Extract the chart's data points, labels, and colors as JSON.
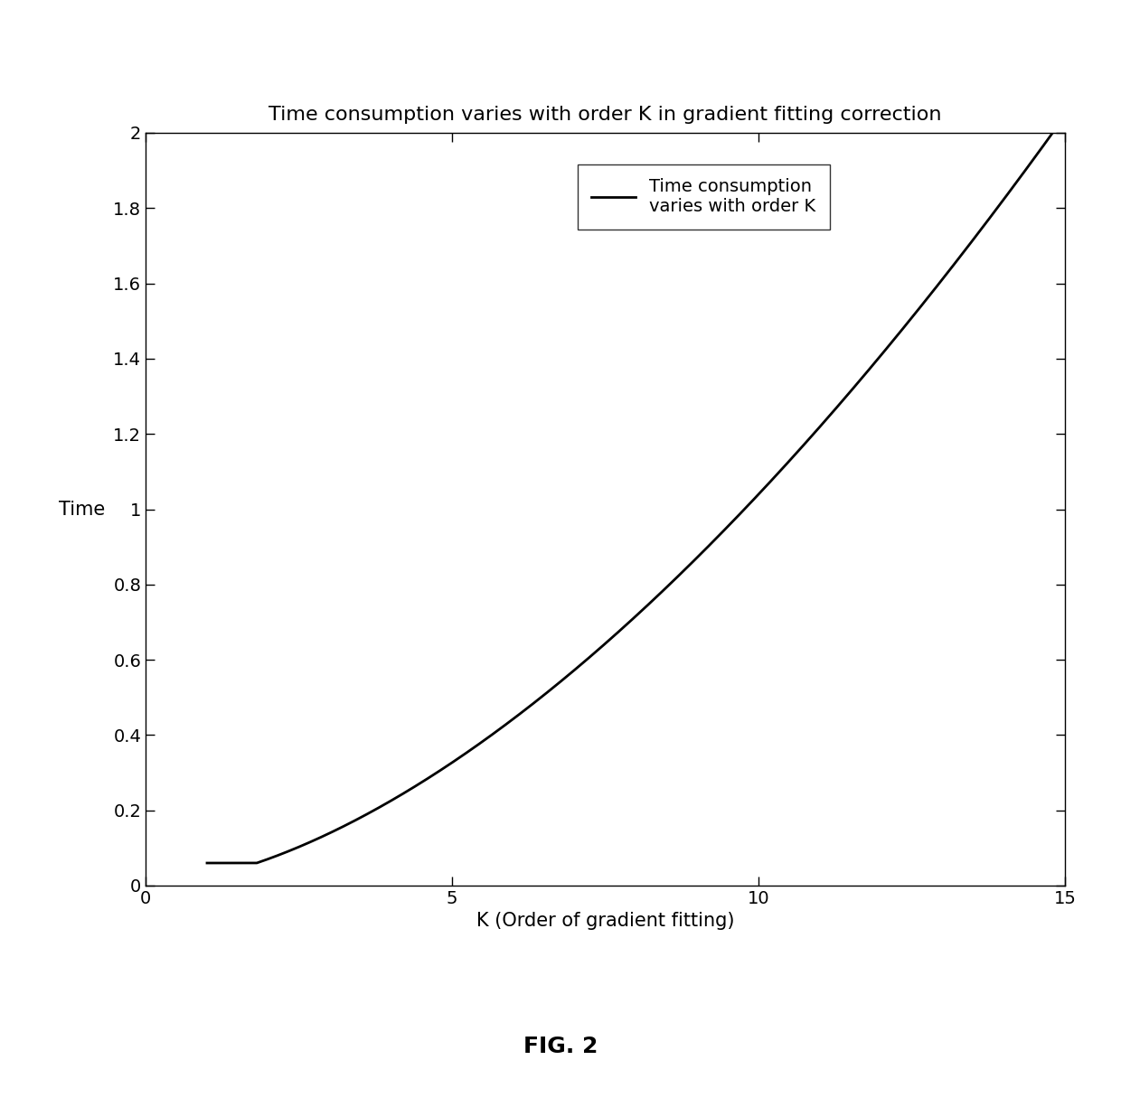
{
  "title": "Time consumption varies with order K in gradient fitting correction",
  "xlabel": "K (Order of gradient fitting)",
  "ylabel": "Time",
  "xlim": [
    0,
    15
  ],
  "ylim": [
    0,
    2
  ],
  "xticks": [
    0,
    5,
    10,
    15
  ],
  "yticks": [
    0,
    0.2,
    0.4,
    0.6,
    0.8,
    1.0,
    1.2,
    1.4,
    1.6,
    1.8,
    2.0
  ],
  "legend_label": "Time consumption\nvaries with order K",
  "line_color": "#000000",
  "background_color": "#ffffff",
  "fig_caption": "FIG. 2",
  "title_fontsize": 16,
  "label_fontsize": 15,
  "tick_fontsize": 14,
  "legend_fontsize": 14,
  "caption_fontsize": 18,
  "figsize": [
    12.4,
    12.25
  ],
  "dpi": 100
}
